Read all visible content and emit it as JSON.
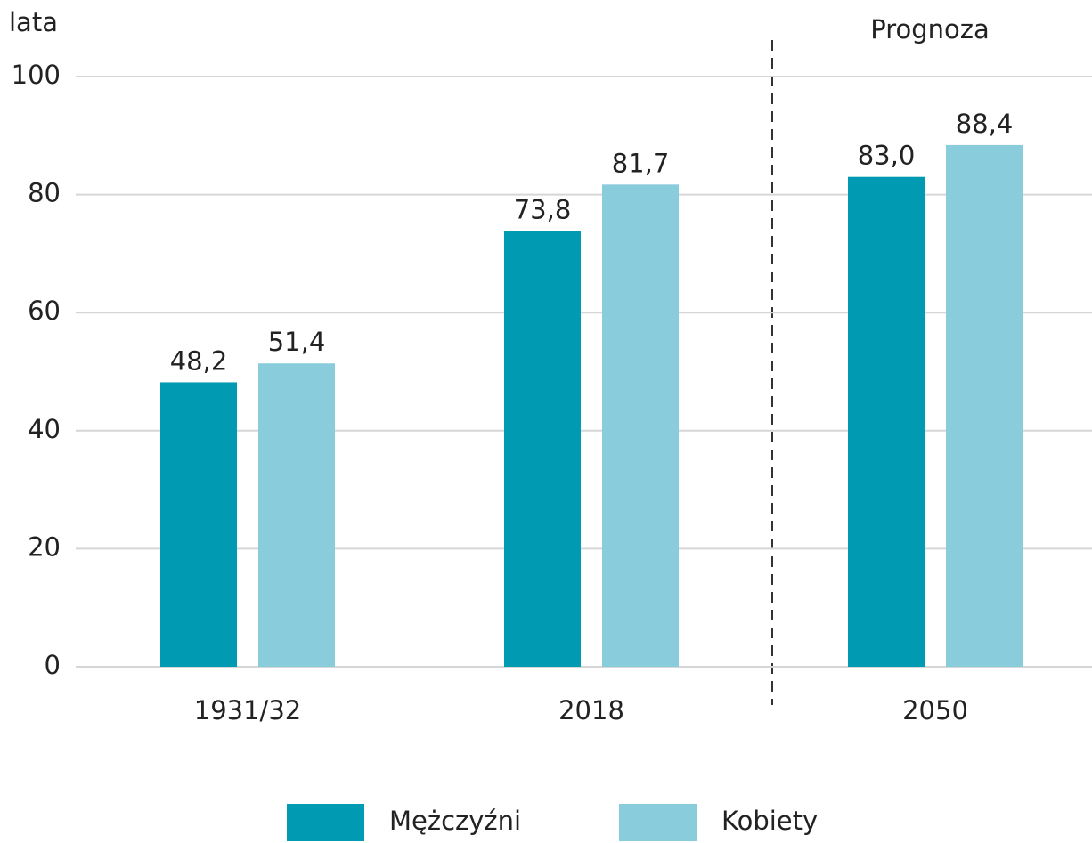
{
  "chart_data": {
    "type": "bar",
    "y_label": "lata",
    "annotation": "Prognoza",
    "categories": [
      "1931/32",
      "2018",
      "2050"
    ],
    "series": [
      {
        "name": "Mężczyźni",
        "color": "#009ab3",
        "values": [
          48.2,
          73.8,
          83.0
        ],
        "value_labels": [
          "48,2",
          "73,8",
          "83,0"
        ]
      },
      {
        "name": "Kobiety",
        "color": "#89ccdb",
        "values": [
          51.4,
          81.7,
          88.4
        ],
        "value_labels": [
          "51,4",
          "81,7",
          "88,4"
        ]
      }
    ],
    "ylim": [
      0,
      100
    ],
    "yticks": [
      0,
      20,
      40,
      60,
      80,
      100
    ],
    "grid": true
  }
}
